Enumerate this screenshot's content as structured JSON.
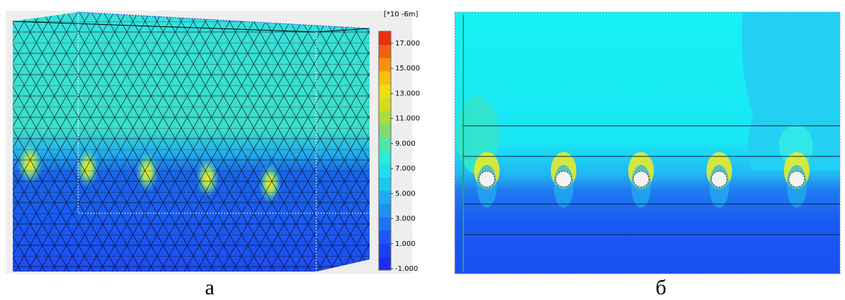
{
  "figure": {
    "left": {
      "unit": "[*10 -6m]",
      "ticks": [
        "17.000",
        "15.000",
        "13.000",
        "11.000",
        "9.000",
        "7.000",
        "5.000",
        "3.000",
        "1.000",
        "-1.000"
      ],
      "caption": "а"
    },
    "right": {
      "caption": "б"
    }
  }
}
